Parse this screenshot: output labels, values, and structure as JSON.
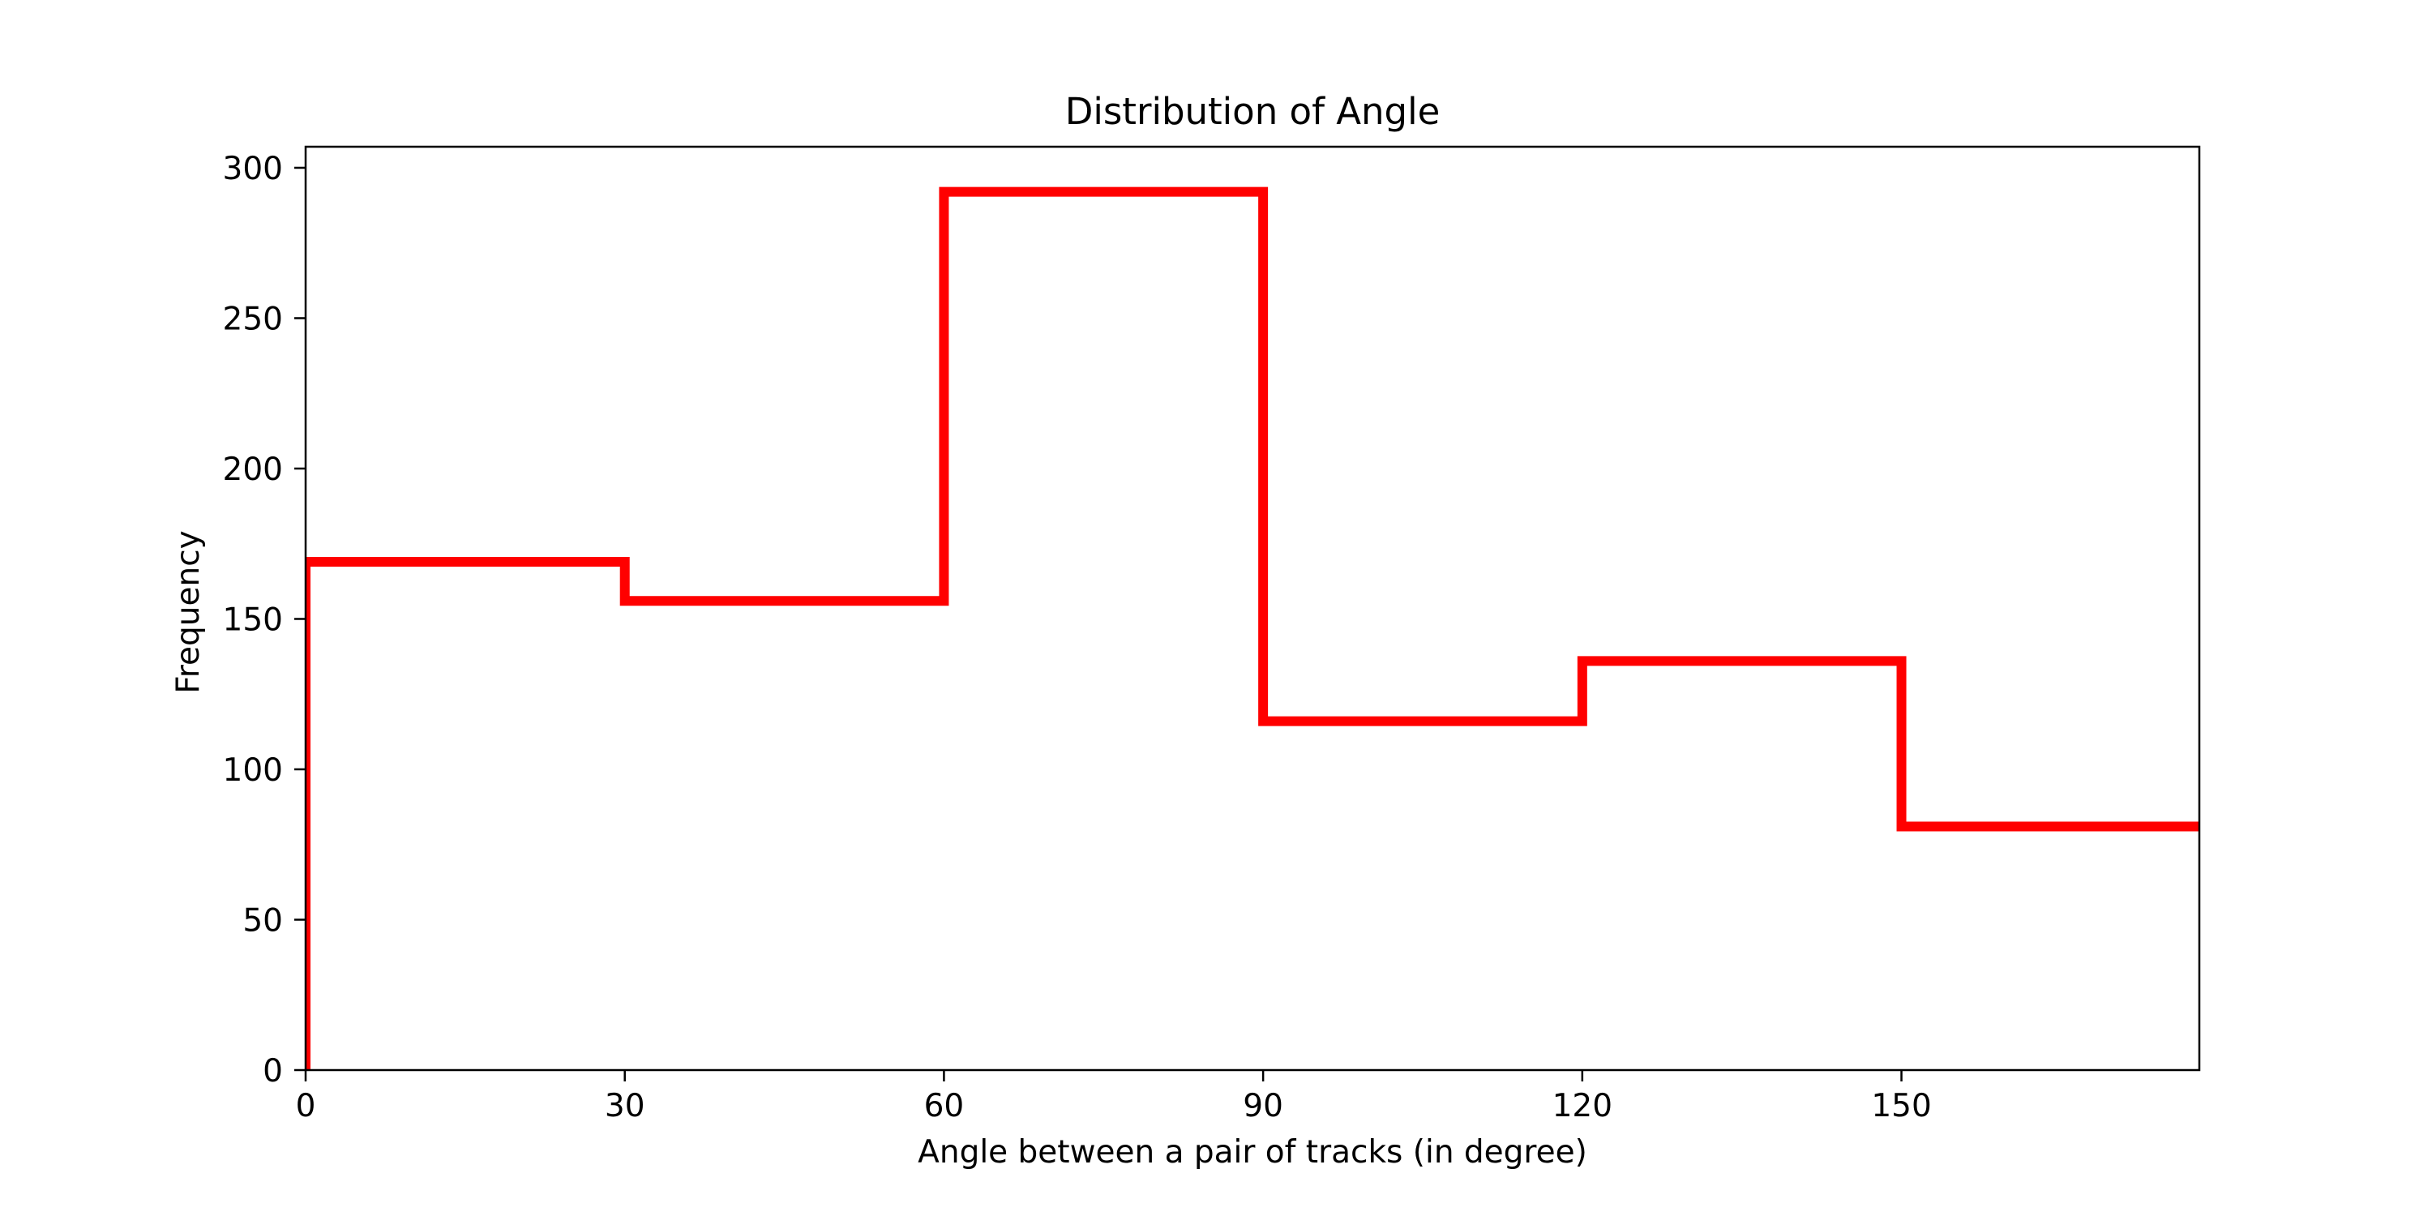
{
  "chart_data": {
    "type": "histogram",
    "title": "Distribution of Angle",
    "xlabel": "Angle between a pair of tracks (in degree)",
    "ylabel": "Frequency",
    "xlim": [
      0,
      178
    ],
    "ylim": [
      0,
      307
    ],
    "xticks": [
      0,
      30,
      60,
      90,
      120,
      150
    ],
    "yticks": [
      0,
      50,
      100,
      150,
      200,
      250,
      300
    ],
    "bin_edges": [
      0,
      30,
      60,
      90,
      120,
      150,
      180
    ],
    "values": [
      169,
      156,
      292,
      116,
      136,
      81
    ],
    "histtype": "step",
    "color": "#ff0000",
    "grid": false
  }
}
